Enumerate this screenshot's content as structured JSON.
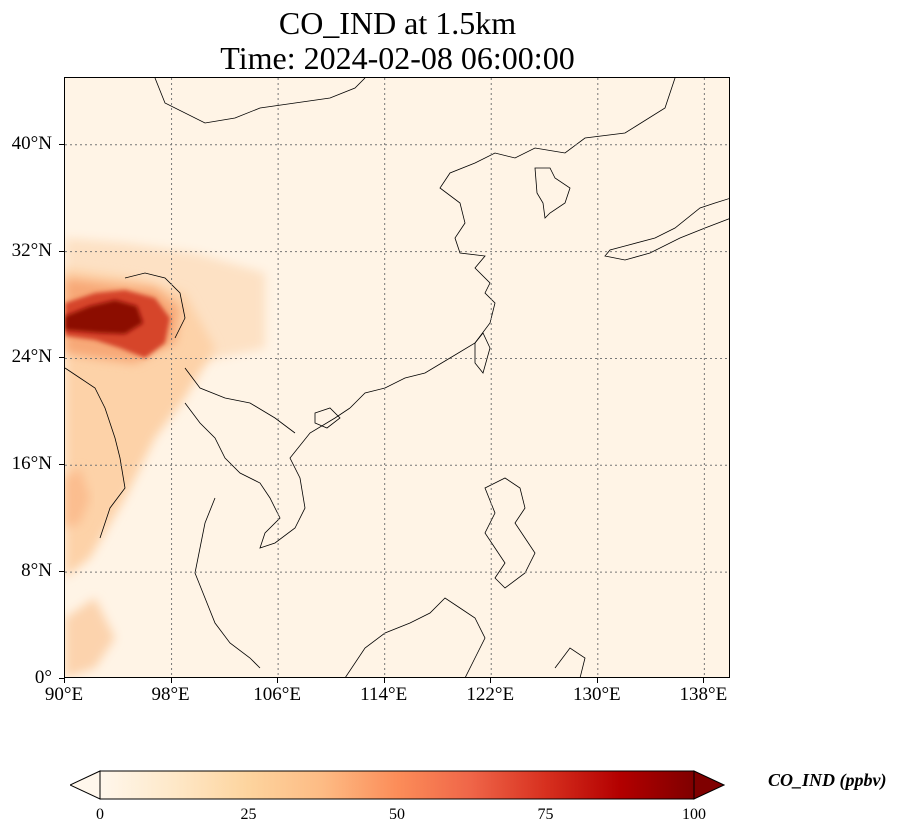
{
  "title_line1": "CO_IND at 1.5km",
  "title_line2": "Time: 2024-02-08 06:00:00",
  "map": {
    "lon_range": [
      90,
      140
    ],
    "lat_range": [
      0,
      45
    ],
    "lon_ticks": [
      "90°E",
      "98°E",
      "106°E",
      "114°E",
      "122°E",
      "130°E",
      "138°E"
    ],
    "lat_ticks": [
      "0°",
      "8°N",
      "16°N",
      "24°N",
      "32°N",
      "40°N"
    ],
    "gridlines": "dotted",
    "colormap": "OrRd",
    "background_color": "#fff4e6",
    "coastline_color": "#000000"
  },
  "colorbar": {
    "title": "CO_IND (ppbv)",
    "tick_labels": [
      "0",
      "25",
      "50",
      "75",
      "100"
    ],
    "min": 0,
    "max": 100,
    "extend": "both",
    "colors": [
      "#fff7ec",
      "#fee8c8",
      "#fdd49e",
      "#fdbb84",
      "#fc8d59",
      "#ef6548",
      "#d7301f",
      "#b30000",
      "#7f0000"
    ]
  }
}
